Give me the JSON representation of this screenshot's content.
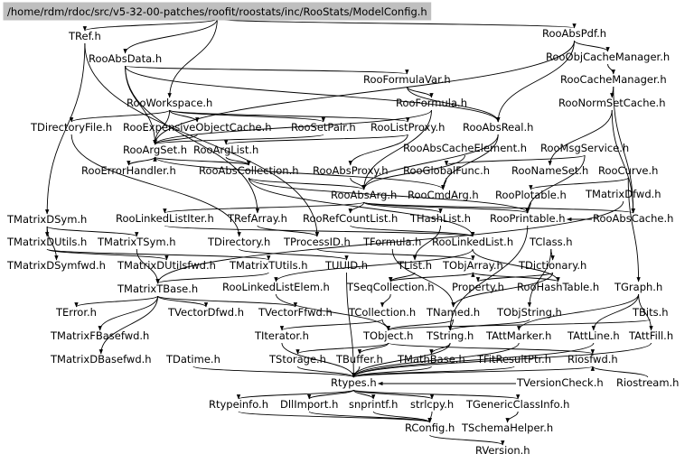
{
  "graph": {
    "root": "/home/rdm/rdoc/src/v5-32-00-patches/roofit/roostats/inc/RooStats/ModelConfig.h",
    "nodes": [
      {
        "id": "n0",
        "label": "/home/rdm/rdoc/src/v5-32-00-patches/roofit/roostats/inc/RooStats/ModelConfig.h"
      },
      {
        "id": "n1",
        "label": "TRef.h"
      },
      {
        "id": "n2",
        "label": "RooAbsPdf.h"
      },
      {
        "id": "n3",
        "label": "RooAbsData.h"
      },
      {
        "id": "n4",
        "label": "RooObjCacheManager.h"
      },
      {
        "id": "n5",
        "label": "RooFormulaVar.h"
      },
      {
        "id": "n6",
        "label": "RooCacheManager.h"
      },
      {
        "id": "n7",
        "label": "RooWorkspace.h"
      },
      {
        "id": "n8",
        "label": "RooFormula.h"
      },
      {
        "id": "n9",
        "label": "RooNormSetCache.h"
      },
      {
        "id": "n10",
        "label": "TDirectoryFile.h"
      },
      {
        "id": "n11",
        "label": "RooExpensiveObjectCache.h"
      },
      {
        "id": "n12",
        "label": "RooSetPair.h"
      },
      {
        "id": "n13",
        "label": "RooListProxy.h"
      },
      {
        "id": "n14",
        "label": "RooAbsReal.h"
      },
      {
        "id": "n15",
        "label": "RooArgSet.h"
      },
      {
        "id": "n16",
        "label": "RooArgList.h"
      },
      {
        "id": "n17",
        "label": "RooAbsCacheElement.h"
      },
      {
        "id": "n18",
        "label": "RooMsgService.h"
      },
      {
        "id": "n19",
        "label": "RooErrorHandler.h"
      },
      {
        "id": "n20",
        "label": "RooAbsCollection.h"
      },
      {
        "id": "n21",
        "label": "RooAbsProxy.h"
      },
      {
        "id": "n22",
        "label": "RooGlobalFunc.h"
      },
      {
        "id": "n23",
        "label": "RooNameSet.h"
      },
      {
        "id": "n24",
        "label": "RooCurve.h"
      },
      {
        "id": "n25",
        "label": "RooAbsArg.h"
      },
      {
        "id": "n26",
        "label": "RooCmdArg.h"
      },
      {
        "id": "n27",
        "label": "RooPlotable.h"
      },
      {
        "id": "n28",
        "label": "TMatrixDfwd.h"
      },
      {
        "id": "n29",
        "label": "TMatrixDSym.h"
      },
      {
        "id": "n30",
        "label": "RooLinkedListIter.h"
      },
      {
        "id": "n31",
        "label": "TRefArray.h"
      },
      {
        "id": "n32",
        "label": "RooRefCountList.h"
      },
      {
        "id": "n33",
        "label": "THashList.h"
      },
      {
        "id": "n34",
        "label": "RooPrintable.h"
      },
      {
        "id": "n35",
        "label": "RooAbsCache.h"
      },
      {
        "id": "n36",
        "label": "TMatrixDUtils.h"
      },
      {
        "id": "n37",
        "label": "TMatrixTSym.h"
      },
      {
        "id": "n38",
        "label": "TDirectory.h"
      },
      {
        "id": "n39",
        "label": "TProcessID.h"
      },
      {
        "id": "n40",
        "label": "TFormula.h"
      },
      {
        "id": "n41",
        "label": "RooLinkedList.h"
      },
      {
        "id": "n42",
        "label": "TClass.h"
      },
      {
        "id": "n43",
        "label": "TMatrixDSymfwd.h"
      },
      {
        "id": "n44",
        "label": "TMatrixDUtilsfwd.h"
      },
      {
        "id": "n45",
        "label": "TMatrixTUtils.h"
      },
      {
        "id": "n46",
        "label": "TUUID.h"
      },
      {
        "id": "n47",
        "label": "TList.h"
      },
      {
        "id": "n48",
        "label": "TObjArray.h"
      },
      {
        "id": "n49",
        "label": "TDictionary.h"
      },
      {
        "id": "n50",
        "label": "TMatrixTBase.h"
      },
      {
        "id": "n51",
        "label": "RooLinkedListElem.h"
      },
      {
        "id": "n52",
        "label": "TSeqCollection.h"
      },
      {
        "id": "n53",
        "label": "Property.h"
      },
      {
        "id": "n54",
        "label": "RooHashTable.h"
      },
      {
        "id": "n55",
        "label": "TGraph.h"
      },
      {
        "id": "n56",
        "label": "TError.h"
      },
      {
        "id": "n57",
        "label": "TVectorDfwd.h"
      },
      {
        "id": "n58",
        "label": "TVectorFfwd.h"
      },
      {
        "id": "n59",
        "label": "TCollection.h"
      },
      {
        "id": "n60",
        "label": "TNamed.h"
      },
      {
        "id": "n61",
        "label": "TObjString.h"
      },
      {
        "id": "n62",
        "label": "TBits.h"
      },
      {
        "id": "n63",
        "label": "TMatrixFBasefwd.h"
      },
      {
        "id": "n64",
        "label": "TIterator.h"
      },
      {
        "id": "n65",
        "label": "TObject.h"
      },
      {
        "id": "n66",
        "label": "TString.h"
      },
      {
        "id": "n67",
        "label": "TAttMarker.h"
      },
      {
        "id": "n68",
        "label": "TAttLine.h"
      },
      {
        "id": "n69",
        "label": "TAttFill.h"
      },
      {
        "id": "n70",
        "label": "TMatrixDBasefwd.h"
      },
      {
        "id": "n71",
        "label": "TDatime.h"
      },
      {
        "id": "n72",
        "label": "TStorage.h"
      },
      {
        "id": "n73",
        "label": "TBuffer.h"
      },
      {
        "id": "n74",
        "label": "TMathBase.h"
      },
      {
        "id": "n75",
        "label": "TFitResultPtr.h"
      },
      {
        "id": "n76",
        "label": "Riosfwd.h"
      },
      {
        "id": "n77",
        "label": "Rtypes.h"
      },
      {
        "id": "n78",
        "label": "TVersionCheck.h"
      },
      {
        "id": "n79",
        "label": "Riostream.h"
      },
      {
        "id": "n80",
        "label": "Rtypeinfo.h"
      },
      {
        "id": "n81",
        "label": "DllImport.h"
      },
      {
        "id": "n82",
        "label": "snprintf.h"
      },
      {
        "id": "n83",
        "label": "strlcpy.h"
      },
      {
        "id": "n84",
        "label": "TGenericClassInfo.h"
      },
      {
        "id": "n85",
        "label": "RConfig.h"
      },
      {
        "id": "n86",
        "label": "TSchemaHelper.h"
      },
      {
        "id": "n87",
        "label": "RVersion.h"
      }
    ],
    "edges": [
      [
        "n0",
        "n1"
      ],
      [
        "n0",
        "n2"
      ],
      [
        "n0",
        "n3"
      ],
      [
        "n0",
        "n7"
      ],
      [
        "n1",
        "n39"
      ],
      [
        "n1",
        "n29"
      ],
      [
        "n2",
        "n4"
      ],
      [
        "n2",
        "n14"
      ],
      [
        "n2",
        "n15"
      ],
      [
        "n3",
        "n14"
      ],
      [
        "n3",
        "n15"
      ],
      [
        "n3",
        "n5"
      ],
      [
        "n3",
        "n31"
      ],
      [
        "n4",
        "n6"
      ],
      [
        "n6",
        "n9"
      ],
      [
        "n6",
        "n35"
      ],
      [
        "n9",
        "n23"
      ],
      [
        "n9",
        "n35"
      ],
      [
        "n5",
        "n8"
      ],
      [
        "n5",
        "n14"
      ],
      [
        "n8",
        "n25"
      ],
      [
        "n8",
        "n15"
      ],
      [
        "n7",
        "n10"
      ],
      [
        "n7",
        "n11"
      ],
      [
        "n7",
        "n12"
      ],
      [
        "n7",
        "n13"
      ],
      [
        "n7",
        "n15"
      ],
      [
        "n10",
        "n38"
      ],
      [
        "n11",
        "n15"
      ],
      [
        "n12",
        "n15"
      ],
      [
        "n13",
        "n21"
      ],
      [
        "n13",
        "n16"
      ],
      [
        "n14",
        "n25"
      ],
      [
        "n14",
        "n26"
      ],
      [
        "n15",
        "n20"
      ],
      [
        "n15",
        "n19"
      ],
      [
        "n16",
        "n20"
      ],
      [
        "n17",
        "n25"
      ],
      [
        "n18",
        "n22"
      ],
      [
        "n18",
        "n34"
      ],
      [
        "n20",
        "n25"
      ],
      [
        "n20",
        "n41"
      ],
      [
        "n20",
        "n34"
      ],
      [
        "n21",
        "n25"
      ],
      [
        "n22",
        "n26"
      ],
      [
        "n24",
        "n55"
      ],
      [
        "n24",
        "n27"
      ],
      [
        "n25",
        "n30"
      ],
      [
        "n25",
        "n32"
      ],
      [
        "n25",
        "n33"
      ],
      [
        "n25",
        "n34"
      ],
      [
        "n25",
        "n35"
      ],
      [
        "n26",
        "n15"
      ],
      [
        "n27",
        "n34"
      ],
      [
        "n28",
        "n50"
      ],
      [
        "n29",
        "n37"
      ],
      [
        "n29",
        "n36"
      ],
      [
        "n29",
        "n43"
      ],
      [
        "n30",
        "n41"
      ],
      [
        "n31",
        "n39"
      ],
      [
        "n32",
        "n41"
      ],
      [
        "n33",
        "n47"
      ],
      [
        "n34",
        "n66"
      ],
      [
        "n35",
        "n34"
      ],
      [
        "n36",
        "n44"
      ],
      [
        "n36",
        "n45"
      ],
      [
        "n37",
        "n50"
      ],
      [
        "n38",
        "n46"
      ],
      [
        "n39",
        "n48"
      ],
      [
        "n40",
        "n60"
      ],
      [
        "n41",
        "n51"
      ],
      [
        "n41",
        "n54"
      ],
      [
        "n42",
        "n49"
      ],
      [
        "n42",
        "n61"
      ],
      [
        "n45",
        "n50"
      ],
      [
        "n46",
        "n77"
      ],
      [
        "n47",
        "n52"
      ],
      [
        "n48",
        "n52"
      ],
      [
        "n49",
        "n60"
      ],
      [
        "n49",
        "n53"
      ],
      [
        "n50",
        "n56"
      ],
      [
        "n50",
        "n57"
      ],
      [
        "n50",
        "n58"
      ],
      [
        "n50",
        "n63"
      ],
      [
        "n50",
        "n70"
      ],
      [
        "n51",
        "n65"
      ],
      [
        "n52",
        "n59"
      ],
      [
        "n54",
        "n48"
      ],
      [
        "n55",
        "n67"
      ],
      [
        "n55",
        "n68"
      ],
      [
        "n55",
        "n69"
      ],
      [
        "n59",
        "n65"
      ],
      [
        "n59",
        "n64"
      ],
      [
        "n60",
        "n65"
      ],
      [
        "n60",
        "n66"
      ],
      [
        "n61",
        "n66"
      ],
      [
        "n62",
        "n65"
      ],
      [
        "n64",
        "n77"
      ],
      [
        "n65",
        "n72"
      ],
      [
        "n65",
        "n73"
      ],
      [
        "n65",
        "n76"
      ],
      [
        "n66",
        "n74"
      ],
      [
        "n66",
        "n77"
      ],
      [
        "n67",
        "n77"
      ],
      [
        "n68",
        "n77"
      ],
      [
        "n69",
        "n77"
      ],
      [
        "n71",
        "n77"
      ],
      [
        "n72",
        "n77"
      ],
      [
        "n73",
        "n77"
      ],
      [
        "n74",
        "n77"
      ],
      [
        "n75",
        "n77"
      ],
      [
        "n76",
        "n77"
      ],
      [
        "n78",
        "n77"
      ],
      [
        "n79",
        "n76"
      ],
      [
        "n77",
        "n80"
      ],
      [
        "n77",
        "n81"
      ],
      [
        "n77",
        "n82"
      ],
      [
        "n77",
        "n83"
      ],
      [
        "n77",
        "n84"
      ],
      [
        "n80",
        "n85"
      ],
      [
        "n81",
        "n85"
      ],
      [
        "n82",
        "n85"
      ],
      [
        "n83",
        "n85"
      ],
      [
        "n84",
        "n86"
      ],
      [
        "n85",
        "n87"
      ]
    ]
  }
}
